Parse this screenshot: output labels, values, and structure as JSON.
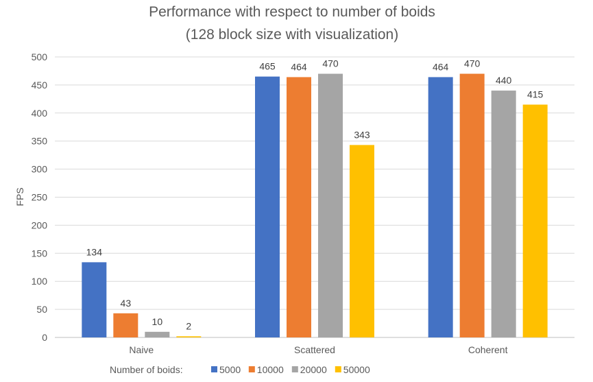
{
  "chart_data": {
    "type": "bar",
    "title": "Performance with respect to number of boids",
    "subtitle": "(128 block size with visualization)",
    "xlabel": "",
    "ylabel": "FPS",
    "ylim": [
      0,
      500
    ],
    "yticks": [
      0,
      50,
      100,
      150,
      200,
      250,
      300,
      350,
      400,
      450,
      500
    ],
    "grid": true,
    "categories": [
      "Naive",
      "Scattered",
      "Coherent"
    ],
    "legend_title": "Number of boids:",
    "legend_position": "bottom",
    "series": [
      {
        "name": "5000",
        "color": "#4472C4",
        "values": [
          134,
          465,
          464
        ]
      },
      {
        "name": "10000",
        "color": "#ED7D31",
        "values": [
          43,
          464,
          470
        ]
      },
      {
        "name": "20000",
        "color": "#A5A5A5",
        "values": [
          10,
          470,
          440
        ]
      },
      {
        "name": "50000",
        "color": "#FFC000",
        "values": [
          2,
          343,
          415
        ]
      }
    ]
  }
}
